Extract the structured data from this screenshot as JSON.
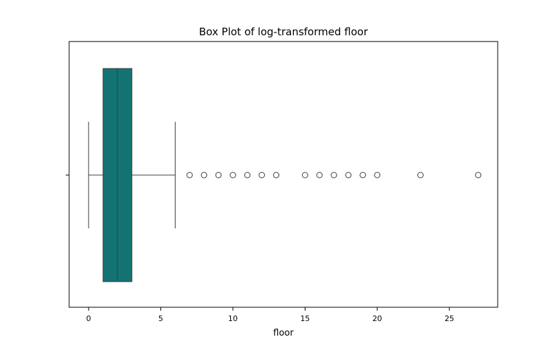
{
  "chart_data": {
    "type": "box",
    "title": "Box Plot of log-transformed floor",
    "xlabel": "floor",
    "ylabel": "",
    "xlim": [
      -1.35,
      28.35
    ],
    "x_ticks": [
      0,
      5,
      10,
      15,
      20,
      25
    ],
    "x_tick_labels": [
      "0",
      "5",
      "10",
      "15",
      "20",
      "25"
    ],
    "box": {
      "whisker_low": 0,
      "q1": 1,
      "median": 2,
      "q3": 3,
      "whisker_high": 6,
      "fill_color": "#137373",
      "line_color": "#3d3d3d"
    },
    "outliers": [
      7,
      8,
      9,
      10,
      11,
      12,
      13,
      15,
      16,
      17,
      18,
      19,
      20,
      23,
      27
    ],
    "grid": false
  }
}
